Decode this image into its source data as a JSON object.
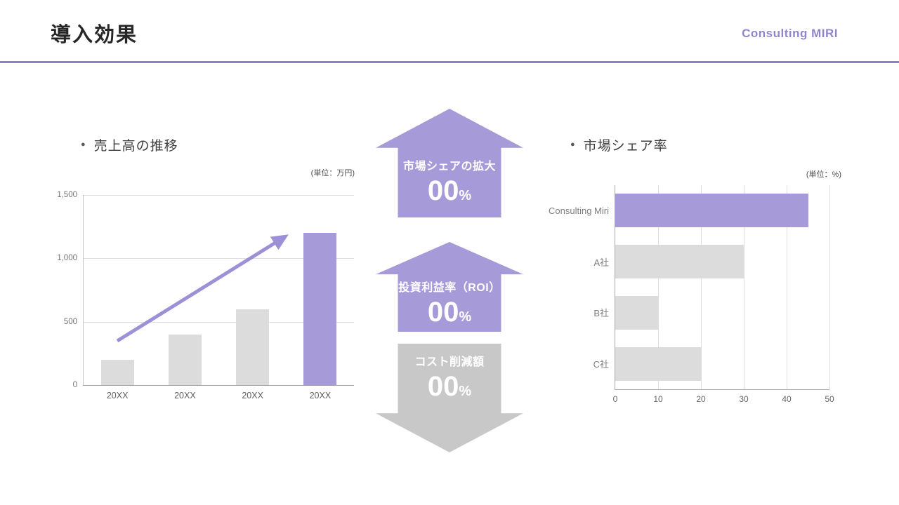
{
  "header": {
    "title": "導入効果",
    "brand": "Consulting MIRI"
  },
  "icons": {
    "bullet": "●"
  },
  "colors": {
    "accent_purple": "#a79ad8",
    "light_gray": "#dcdcdc",
    "arrow_gray": "#c8c8c8",
    "divider_purple": "#8b7ed6",
    "brand_purple": "#9285cf",
    "trend_arrow_purple": "#9d90d6"
  },
  "sales_section": {
    "heading": "売上高の推移",
    "unit_label": "(単位：万円)"
  },
  "share_section": {
    "heading": "市場シェア率",
    "unit_label": "(単位：%)"
  },
  "kpi_arrows": [
    {
      "label": "市場シェアの拡大",
      "value": "00",
      "suffix": "%",
      "direction": "up",
      "color": "#a79ad8"
    },
    {
      "label": "投資利益率（ROI）",
      "value": "00",
      "suffix": "%",
      "direction": "up",
      "color": "#a79ad8"
    },
    {
      "label": "コスト削減額",
      "value": "00",
      "suffix": "%",
      "direction": "down",
      "color": "#c8c8c8"
    }
  ],
  "chart_data": [
    {
      "type": "bar",
      "title": "売上高の推移",
      "unit_label": "(単位：万円)",
      "categories": [
        "20XX",
        "20XX",
        "20XX",
        "20XX"
      ],
      "values": [
        200,
        400,
        600,
        1200
      ],
      "ylim": [
        0,
        1500
      ],
      "y_ticks": [
        "0",
        "500",
        "1,000",
        "1,500"
      ],
      "bar_colors": [
        "#dcdcdc",
        "#dcdcdc",
        "#dcdcdc",
        "#a79ad8"
      ],
      "grid": true,
      "annotation": "upward-trend-arrow"
    },
    {
      "type": "bar",
      "orientation": "horizontal",
      "title": "市場シェア率",
      "unit_label": "(単位：%)",
      "categories": [
        "Consulting Miri",
        "A社",
        "B社",
        "C社"
      ],
      "values": [
        45,
        30,
        10,
        20
      ],
      "xlim": [
        0,
        50
      ],
      "x_ticks": [
        "0",
        "10",
        "20",
        "30",
        "40",
        "50"
      ],
      "bar_colors": [
        "#a79ad8",
        "#dcdcdc",
        "#dcdcdc",
        "#dcdcdc"
      ],
      "grid": true
    }
  ]
}
